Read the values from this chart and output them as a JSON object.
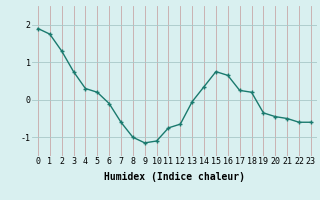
{
  "x": [
    0,
    1,
    2,
    3,
    4,
    5,
    6,
    7,
    8,
    9,
    10,
    11,
    12,
    13,
    14,
    15,
    16,
    17,
    18,
    19,
    20,
    21,
    22,
    23
  ],
  "y": [
    1.9,
    1.75,
    1.3,
    0.75,
    0.3,
    0.2,
    -0.1,
    -0.6,
    -1.0,
    -1.15,
    -1.1,
    -0.75,
    -0.65,
    -0.05,
    0.35,
    0.75,
    0.65,
    0.25,
    0.2,
    -0.35,
    -0.45,
    -0.5,
    -0.6,
    -0.6
  ],
  "line_color": "#1a7a6e",
  "marker": "+",
  "marker_size": 3,
  "bg_color": "#d9f0f0",
  "grid_color_x": "#c8a8a8",
  "grid_color_y": "#a8c8c8",
  "xlabel": "Humidex (Indice chaleur)",
  "ylim": [
    -1.5,
    2.5
  ],
  "xlim": [
    -0.5,
    23.5
  ],
  "yticks": [
    -1,
    0,
    1,
    2
  ],
  "xticks": [
    0,
    1,
    2,
    3,
    4,
    5,
    6,
    7,
    8,
    9,
    10,
    11,
    12,
    13,
    14,
    15,
    16,
    17,
    18,
    19,
    20,
    21,
    22,
    23
  ],
  "xlabel_fontsize": 7,
  "tick_fontsize": 6,
  "line_width": 1.0
}
